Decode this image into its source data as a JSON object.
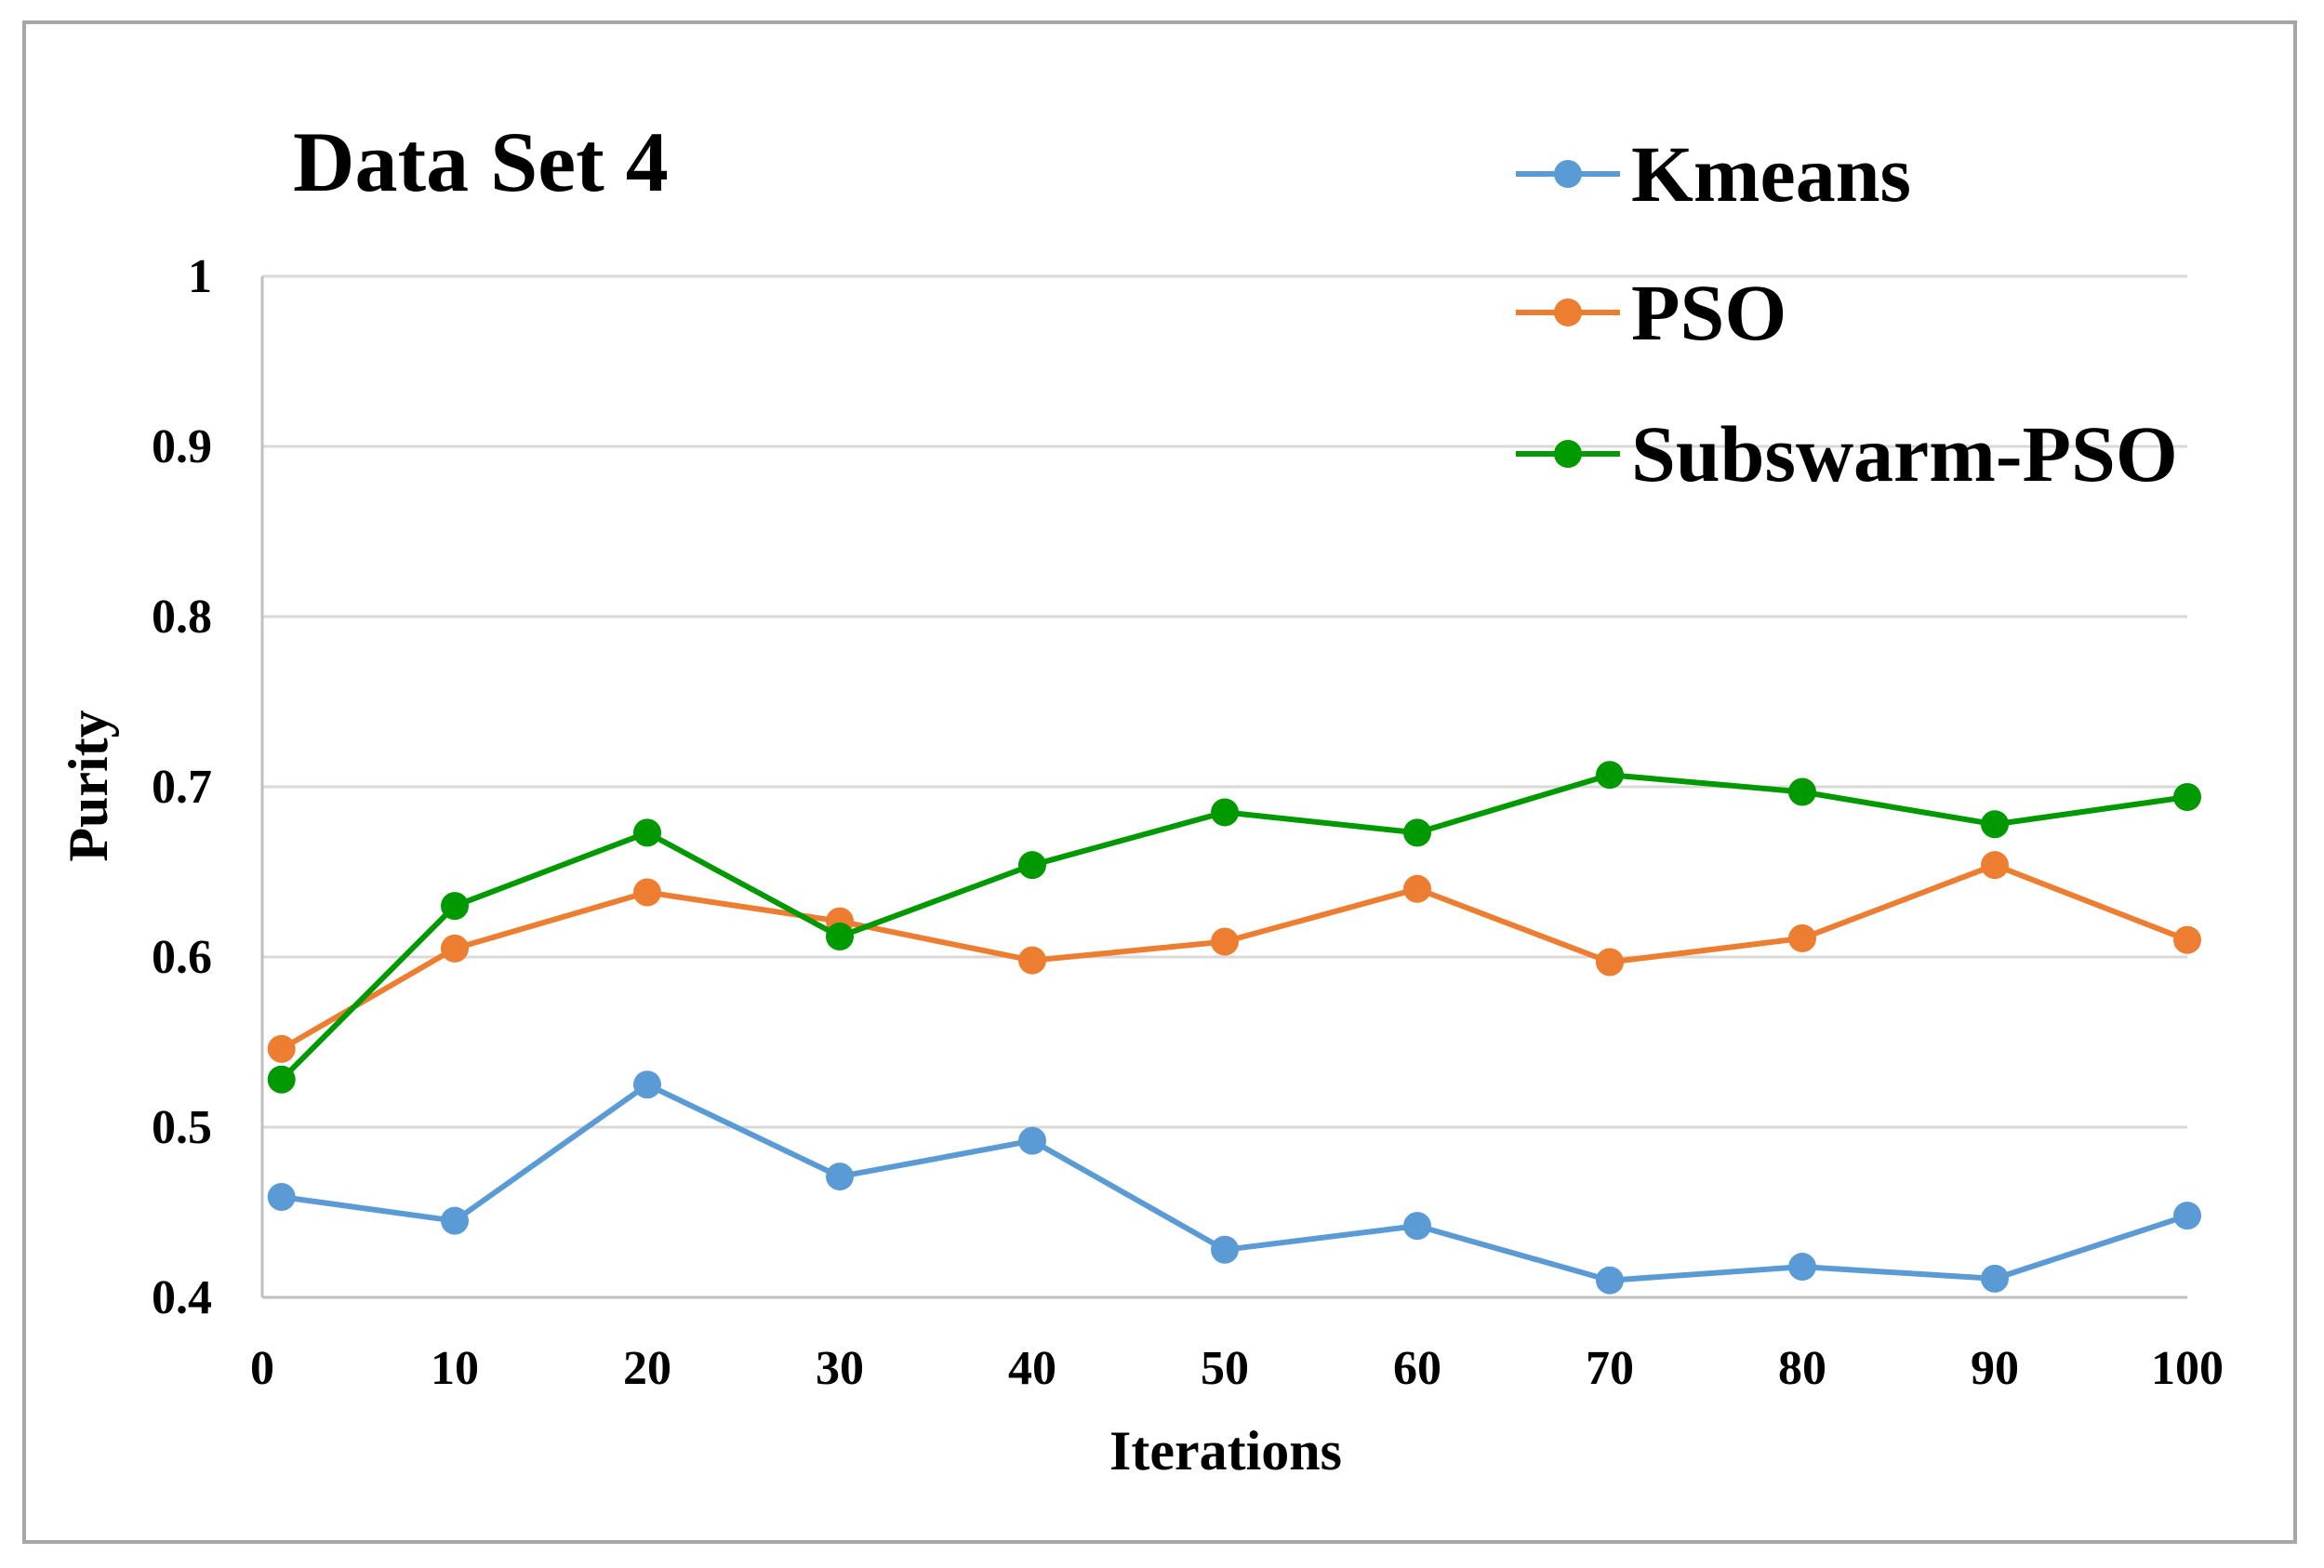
{
  "chart_data": {
    "type": "line",
    "title": "Data Set 4",
    "xlabel": "Iterations",
    "ylabel": "Purity",
    "xlim": [
      0,
      100
    ],
    "ylim": [
      0.4,
      1
    ],
    "x_ticks": [
      "0",
      "10",
      "20",
      "30",
      "40",
      "50",
      "60",
      "70",
      "80",
      "90",
      "100"
    ],
    "y_ticks": [
      "0.4",
      "0.5",
      "0.6",
      "0.7",
      "0.8",
      "0.9",
      "1"
    ],
    "grid": true,
    "legend_position": "top-right",
    "x": [
      1,
      10,
      20,
      30,
      40,
      50,
      60,
      70,
      80,
      90,
      100
    ],
    "series": [
      {
        "name": "Kmeans",
        "color": "#5b9bd5",
        "values": [
          0.459,
          0.445,
          0.525,
          0.471,
          0.492,
          0.428,
          0.442,
          0.41,
          0.418,
          0.411,
          0.448
        ]
      },
      {
        "name": "PSO",
        "color": "#ed7d31",
        "values": [
          0.546,
          0.605,
          0.638,
          0.621,
          0.598,
          0.609,
          0.64,
          0.597,
          0.611,
          0.654,
          0.61
        ]
      },
      {
        "name": "Subswarm-PSO",
        "color": "#009900",
        "values": [
          0.528,
          0.63,
          0.673,
          0.612,
          0.654,
          0.685,
          0.673,
          0.707,
          0.697,
          0.678,
          0.694
        ]
      }
    ]
  }
}
